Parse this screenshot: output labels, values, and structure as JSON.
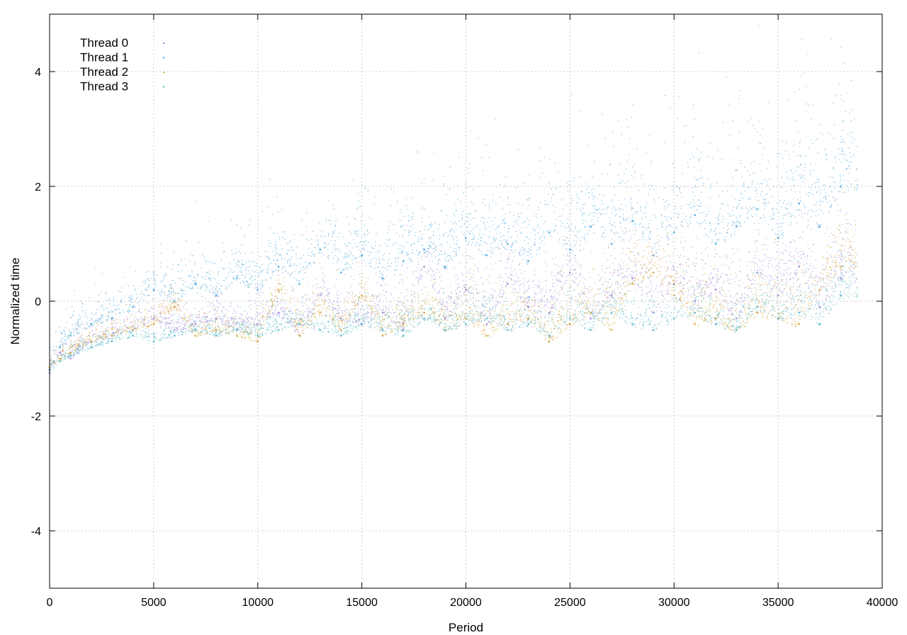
{
  "chart_data": {
    "type": "scatter",
    "title": "",
    "xlabel": "Period",
    "ylabel": "Normalized time",
    "xlim": [
      0,
      40000
    ],
    "ylim": [
      -5,
      5
    ],
    "x_ticks": [
      0,
      5000,
      10000,
      15000,
      20000,
      25000,
      30000,
      35000,
      40000
    ],
    "y_ticks": [
      -4,
      -2,
      0,
      2,
      4
    ],
    "x_tick_labels": [
      "0",
      "5000",
      "10000",
      "15000",
      "20000",
      "25000",
      "30000",
      "35000",
      "40000"
    ],
    "y_tick_labels": [
      "-4",
      "-2",
      "0",
      "2",
      "4"
    ],
    "grid": true,
    "legend": "top-left",
    "x_max_data": 38800,
    "series": [
      {
        "name": "Thread 0",
        "color": "#9b7fd6",
        "points": [
          [
            0,
            -1.25
          ],
          [
            500,
            -0.9
          ],
          [
            1000,
            -1.0
          ],
          [
            2000,
            -0.7
          ],
          [
            3000,
            -0.6
          ],
          [
            4000,
            -0.5
          ],
          [
            5000,
            -0.3
          ],
          [
            6000,
            -0.5
          ],
          [
            7000,
            -0.4
          ],
          [
            8000,
            -0.3
          ],
          [
            9000,
            -0.5
          ],
          [
            10000,
            -0.4
          ],
          [
            11000,
            -0.2
          ],
          [
            12000,
            -0.6
          ],
          [
            13000,
            0.1
          ],
          [
            14000,
            -0.3
          ],
          [
            15000,
            -0.4
          ],
          [
            16000,
            -0.2
          ],
          [
            17000,
            -0.5
          ],
          [
            18000,
            0.6
          ],
          [
            19000,
            -0.3
          ],
          [
            20000,
            0.2
          ],
          [
            21000,
            -0.4
          ],
          [
            22000,
            0.3
          ],
          [
            23000,
            -0.1
          ],
          [
            24000,
            -0.2
          ],
          [
            25000,
            0.5
          ],
          [
            26000,
            -0.3
          ],
          [
            27000,
            0.1
          ],
          [
            28000,
            0.4
          ],
          [
            29000,
            -0.2
          ],
          [
            30000,
            0.3
          ],
          [
            31000,
            0.0
          ],
          [
            32000,
            0.2
          ],
          [
            33000,
            -0.3
          ],
          [
            34000,
            0.5
          ],
          [
            35000,
            0.1
          ],
          [
            36000,
            0.6
          ],
          [
            37000,
            -0.1
          ],
          [
            38000,
            0.4
          ]
        ]
      },
      {
        "name": "Thread 1",
        "color": "#3a9fd8",
        "points": [
          [
            0,
            -1.2
          ],
          [
            500,
            -0.8
          ],
          [
            1000,
            -0.6
          ],
          [
            2000,
            -0.4
          ],
          [
            3000,
            -0.3
          ],
          [
            4000,
            -0.1
          ],
          [
            5000,
            0.2
          ],
          [
            6000,
            0.0
          ],
          [
            7000,
            0.3
          ],
          [
            8000,
            0.1
          ],
          [
            9000,
            0.4
          ],
          [
            10000,
            0.2
          ],
          [
            11000,
            0.6
          ],
          [
            12000,
            0.3
          ],
          [
            13000,
            0.9
          ],
          [
            14000,
            0.5
          ],
          [
            15000,
            0.8
          ],
          [
            16000,
            0.4
          ],
          [
            17000,
            0.7
          ],
          [
            18000,
            0.9
          ],
          [
            19000,
            0.6
          ],
          [
            20000,
            1.1
          ],
          [
            21000,
            0.8
          ],
          [
            22000,
            1.0
          ],
          [
            23000,
            0.7
          ],
          [
            24000,
            1.2
          ],
          [
            25000,
            0.9
          ],
          [
            26000,
            1.3
          ],
          [
            27000,
            1.0
          ],
          [
            28000,
            1.4
          ],
          [
            29000,
            0.8
          ],
          [
            30000,
            1.2
          ],
          [
            31000,
            1.5
          ],
          [
            32000,
            1.0
          ],
          [
            33000,
            1.3
          ],
          [
            34000,
            1.6
          ],
          [
            35000,
            1.1
          ],
          [
            36000,
            1.7
          ],
          [
            37000,
            1.3
          ],
          [
            38000,
            2.0
          ]
        ]
      },
      {
        "name": "Thread 2",
        "color": "#d4a030",
        "points": [
          [
            0,
            -1.15
          ],
          [
            500,
            -1.0
          ],
          [
            1000,
            -0.9
          ],
          [
            2000,
            -0.7
          ],
          [
            3000,
            -0.6
          ],
          [
            4000,
            -0.5
          ],
          [
            5000,
            -0.4
          ],
          [
            6000,
            -0.1
          ],
          [
            7000,
            -0.6
          ],
          [
            8000,
            -0.5
          ],
          [
            9000,
            -0.6
          ],
          [
            10000,
            -0.7
          ],
          [
            11000,
            0.2
          ],
          [
            12000,
            -0.6
          ],
          [
            13000,
            -0.2
          ],
          [
            14000,
            -0.5
          ],
          [
            15000,
            0.1
          ],
          [
            16000,
            -0.6
          ],
          [
            17000,
            -0.4
          ],
          [
            18000,
            -0.2
          ],
          [
            19000,
            -0.5
          ],
          [
            20000,
            -0.3
          ],
          [
            21000,
            -0.6
          ],
          [
            22000,
            -0.4
          ],
          [
            23000,
            -0.3
          ],
          [
            24000,
            -0.7
          ],
          [
            25000,
            -0.4
          ],
          [
            26000,
            -0.2
          ],
          [
            27000,
            -0.5
          ],
          [
            28000,
            0.3
          ],
          [
            29000,
            0.5
          ],
          [
            30000,
            0.1
          ],
          [
            31000,
            -0.4
          ],
          [
            32000,
            -0.3
          ],
          [
            33000,
            -0.5
          ],
          [
            34000,
            -0.2
          ],
          [
            35000,
            -0.3
          ],
          [
            36000,
            -0.4
          ],
          [
            37000,
            0.2
          ],
          [
            38000,
            0.6
          ]
        ]
      },
      {
        "name": "Thread 3",
        "color": "#4fb4c4",
        "points": [
          [
            0,
            -1.2
          ],
          [
            500,
            -1.05
          ],
          [
            1000,
            -0.95
          ],
          [
            2000,
            -0.8
          ],
          [
            3000,
            -0.7
          ],
          [
            4000,
            -0.6
          ],
          [
            5000,
            -0.7
          ],
          [
            6000,
            -0.6
          ],
          [
            7000,
            -0.5
          ],
          [
            8000,
            -0.6
          ],
          [
            9000,
            -0.5
          ],
          [
            10000,
            -0.6
          ],
          [
            11000,
            -0.5
          ],
          [
            12000,
            -0.4
          ],
          [
            13000,
            -0.5
          ],
          [
            14000,
            -0.6
          ],
          [
            15000,
            -0.4
          ],
          [
            16000,
            -0.5
          ],
          [
            17000,
            -0.6
          ],
          [
            18000,
            -0.3
          ],
          [
            19000,
            -0.5
          ],
          [
            20000,
            -0.4
          ],
          [
            21000,
            -0.3
          ],
          [
            22000,
            -0.5
          ],
          [
            23000,
            -0.4
          ],
          [
            24000,
            -0.6
          ],
          [
            25000,
            -0.3
          ],
          [
            26000,
            -0.5
          ],
          [
            27000,
            -0.2
          ],
          [
            28000,
            -0.4
          ],
          [
            29000,
            -0.5
          ],
          [
            30000,
            -0.3
          ],
          [
            31000,
            -0.2
          ],
          [
            32000,
            -0.4
          ],
          [
            33000,
            -0.5
          ],
          [
            34000,
            -0.1
          ],
          [
            35000,
            -0.3
          ],
          [
            36000,
            -0.2
          ],
          [
            37000,
            -0.4
          ],
          [
            38000,
            0.1
          ]
        ]
      }
    ]
  }
}
